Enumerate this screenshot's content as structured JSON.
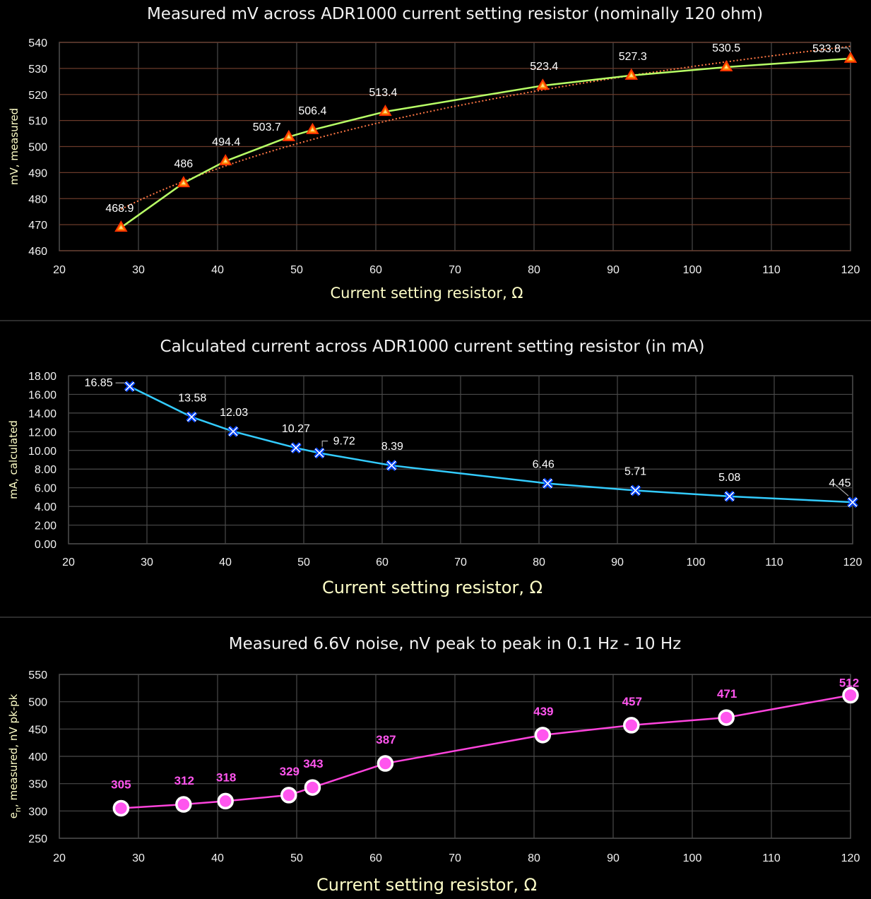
{
  "colors": {
    "background": "#000000",
    "grid": "#4a4a4a",
    "gridHorizontalTop": "#6a3a2a",
    "separator": "#3a3a3a",
    "axisText": "#f2f2f2",
    "axisTitle": "#ffffc8",
    "seriesTop": "#b8ff66",
    "trendTop": "#ff7744",
    "markerTopFill": "#ff8800",
    "markerTopStroke": "#ff3300",
    "seriesMid": "#33ccff",
    "markerMid": "#0044ff",
    "seriesBot": "#ff44dd",
    "markerBotFill": "#ff55ee"
  },
  "chart_data": [
    {
      "type": "line",
      "title": "Measured mV across ADR1000 current setting resistor (nominally 120 ohm)",
      "xlabel": "Current setting resistor, Ω",
      "ylabel": "mV, measured",
      "xlim": [
        20,
        120
      ],
      "ylim": [
        460,
        540
      ],
      "xticks": [
        "20",
        "30",
        "40",
        "50",
        "60",
        "70",
        "80",
        "90",
        "100",
        "110",
        "120"
      ],
      "yticks": [
        "460",
        "470",
        "480",
        "490",
        "500",
        "510",
        "520",
        "530",
        "540"
      ],
      "grid": true,
      "trendline": true,
      "series": [
        {
          "x": [
            27.8,
            35.7,
            41.0,
            49.0,
            52.0,
            61.2,
            81.1,
            92.3,
            104.3,
            120.0
          ],
          "values": [
            468.9,
            486,
            494.4,
            503.7,
            506.4,
            513.4,
            523.4,
            527.3,
            530.5,
            533.8
          ],
          "labels": [
            "468.9",
            "486",
            "494.4",
            "503.7",
            "506.4",
            "513.4",
            "523.4",
            "527.3",
            "530.5",
            "533.8"
          ]
        }
      ]
    },
    {
      "type": "line",
      "title": "Calculated current across ADR1000 current setting resistor (in mA)",
      "xlabel": "Current setting resistor, Ω",
      "ylabel": "mA, calculated",
      "xlim": [
        20,
        120
      ],
      "ylim": [
        0,
        18
      ],
      "xticks": [
        "20",
        "30",
        "40",
        "50",
        "60",
        "70",
        "80",
        "90",
        "100",
        "110",
        "120"
      ],
      "yticks": [
        "0.00",
        "2.00",
        "4.00",
        "6.00",
        "8.00",
        "10.00",
        "12.00",
        "14.00",
        "16.00",
        "18.00"
      ],
      "grid": true,
      "series": [
        {
          "x": [
            27.8,
            35.7,
            41.0,
            49.0,
            52.0,
            61.2,
            81.1,
            92.3,
            104.3,
            120.0
          ],
          "values": [
            16.85,
            13.58,
            12.03,
            10.27,
            9.72,
            8.39,
            6.46,
            5.71,
            5.08,
            4.45
          ],
          "labels": [
            "16.85",
            "13.58",
            "12.03",
            "10.27",
            "9.72",
            "8.39",
            "6.46",
            "5.71",
            "5.08",
            "4.45"
          ]
        }
      ]
    },
    {
      "type": "line",
      "title": "Measured 6.6V noise, nV peak to peak in 0.1 Hz - 10 Hz",
      "xlabel": "Current setting resistor, Ω",
      "ylabel": "e",
      "ylabel_sub": "n",
      "ylabel_rest": ", measured, nV pk-pk",
      "xlim": [
        20,
        120
      ],
      "ylim": [
        250,
        550
      ],
      "xticks": [
        "20",
        "30",
        "40",
        "50",
        "60",
        "70",
        "80",
        "90",
        "100",
        "110",
        "120"
      ],
      "yticks": [
        "250",
        "300",
        "350",
        "400",
        "450",
        "500",
        "550"
      ],
      "grid": true,
      "series": [
        {
          "x": [
            27.8,
            35.7,
            41.0,
            49.0,
            52.0,
            61.2,
            81.1,
            92.3,
            104.3,
            120.0
          ],
          "values": [
            305,
            312,
            318,
            329,
            343,
            387,
            439,
            457,
            471,
            512
          ],
          "labels": [
            "305",
            "312",
            "318",
            "329",
            "343",
            "387",
            "439",
            "457",
            "471",
            "512"
          ]
        }
      ]
    }
  ]
}
